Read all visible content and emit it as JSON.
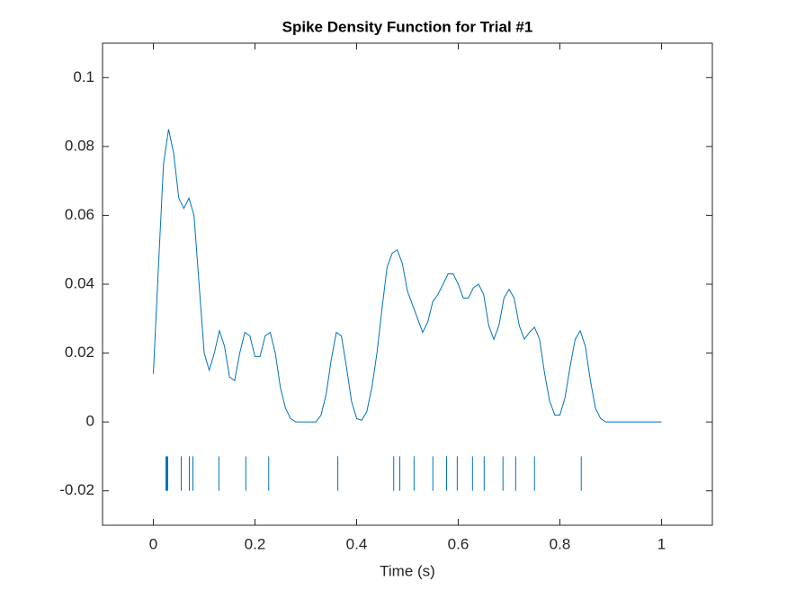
{
  "chart_data": {
    "type": "line",
    "title": "Spike Density Function for Trial #1",
    "xlabel": "Time (s)",
    "xlim": [
      -0.1,
      1.1
    ],
    "ylim": [
      -0.03,
      0.11
    ],
    "xticks": [
      0,
      0.2,
      0.4,
      0.6,
      0.8,
      1
    ],
    "yticks": [
      -0.02,
      0,
      0.02,
      0.04,
      0.06,
      0.08,
      0.1
    ],
    "grid": false,
    "series": [
      {
        "color": "#0072BD",
        "x": [
          0,
          0.01,
          0.02,
          0.03,
          0.04,
          0.05,
          0.06,
          0.07,
          0.08,
          0.09,
          0.1,
          0.11,
          0.12,
          0.13,
          0.14,
          0.15,
          0.16,
          0.17,
          0.18,
          0.19,
          0.2,
          0.21,
          0.22,
          0.23,
          0.24,
          0.25,
          0.26,
          0.27,
          0.28,
          0.29,
          0.3,
          0.31,
          0.32,
          0.33,
          0.34,
          0.35,
          0.36,
          0.37,
          0.38,
          0.39,
          0.4,
          0.41,
          0.42,
          0.43,
          0.44,
          0.45,
          0.46,
          0.47,
          0.48,
          0.49,
          0.5,
          0.51,
          0.52,
          0.53,
          0.54,
          0.55,
          0.56,
          0.57,
          0.58,
          0.59,
          0.6,
          0.61,
          0.62,
          0.63,
          0.64,
          0.65,
          0.66,
          0.67,
          0.68,
          0.69,
          0.7,
          0.71,
          0.72,
          0.73,
          0.74,
          0.75,
          0.76,
          0.77,
          0.78,
          0.79,
          0.8,
          0.81,
          0.82,
          0.83,
          0.84,
          0.85,
          0.86,
          0.87,
          0.88,
          0.89,
          0.9,
          0.91,
          0.92,
          0.93,
          0.94,
          0.95,
          0.96,
          0.97,
          0.98,
          0.99,
          1
        ],
        "values": [
          0.014,
          0.045,
          0.075,
          0.085,
          0.078,
          0.065,
          0.062,
          0.065,
          0.06,
          0.04,
          0.02,
          0.015,
          0.02,
          0.0265,
          0.022,
          0.013,
          0.012,
          0.02,
          0.026,
          0.025,
          0.019,
          0.019,
          0.025,
          0.026,
          0.02,
          0.01,
          0.004,
          0.001,
          0,
          0,
          0,
          0,
          0,
          0.002,
          0.008,
          0.018,
          0.026,
          0.025,
          0.016,
          0.006,
          0.001,
          0.0005,
          0.003,
          0.01,
          0.02,
          0.033,
          0.045,
          0.049,
          0.05,
          0.046,
          0.038,
          0.034,
          0.03,
          0.026,
          0.029,
          0.035,
          0.037,
          0.04,
          0.043,
          0.043,
          0.04,
          0.036,
          0.036,
          0.039,
          0.04,
          0.037,
          0.028,
          0.024,
          0.028,
          0.036,
          0.0385,
          0.036,
          0.028,
          0.024,
          0.026,
          0.0275,
          0.024,
          0.014,
          0.006,
          0.002,
          0.002,
          0.007,
          0.016,
          0.024,
          0.0265,
          0.022,
          0.012,
          0.004,
          0.001,
          0,
          0,
          0,
          0,
          0,
          0,
          0,
          0,
          0,
          0,
          0,
          0
        ]
      }
    ],
    "raster": {
      "color": "#0072BD",
      "range": [
        -0.02,
        -0.01
      ],
      "times": [
        0.0248,
        0.0265,
        0.0283,
        0.0549,
        0.0708,
        0.0779,
        0.129,
        0.182,
        0.227,
        0.363,
        0.473,
        0.485,
        0.513,
        0.55,
        0.577,
        0.598,
        0.628,
        0.651,
        0.688,
        0.713,
        0.75,
        0.842
      ]
    }
  }
}
